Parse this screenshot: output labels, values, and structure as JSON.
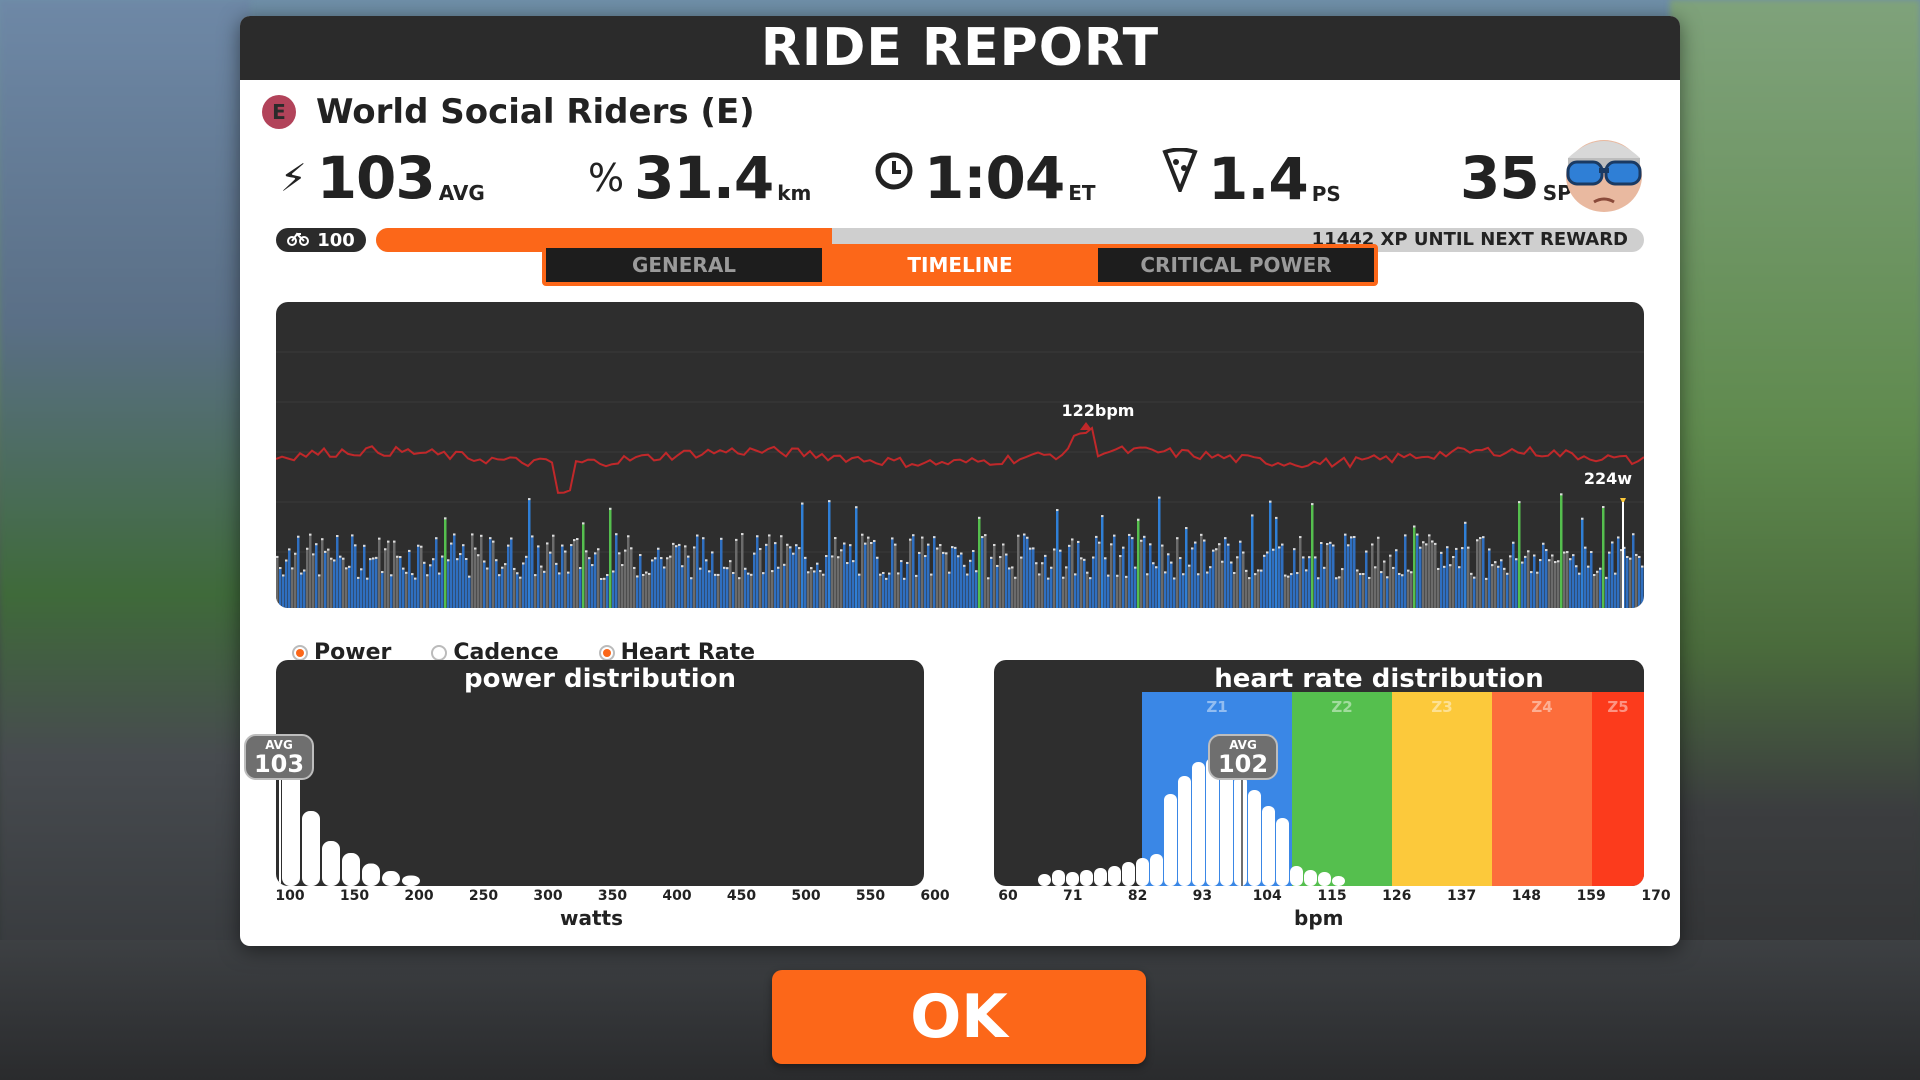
{
  "header": {
    "title": "RIDE REPORT"
  },
  "event": {
    "category": "E",
    "name": "World Social Riders (E)"
  },
  "stats": {
    "power": {
      "value": "103",
      "unit": "AVG"
    },
    "distance": {
      "value": "31.4",
      "unit": "km"
    },
    "time": {
      "value": "1:04",
      "unit": "ET"
    },
    "pizza": {
      "value": "1.4",
      "unit": "PS"
    },
    "sport_points": {
      "value": "35",
      "unit": "SP"
    }
  },
  "xp": {
    "level": "100",
    "progress": 0.36,
    "text": "11442 XP UNTIL NEXT REWARD"
  },
  "tabs": [
    {
      "label": "GENERAL",
      "active": false
    },
    {
      "label": "TIMELINE",
      "active": true
    },
    {
      "label": "CRITICAL POWER",
      "active": false
    }
  ],
  "timeline": {
    "hr_peak_label": "122bpm",
    "power_peak_label": "224w"
  },
  "legend": {
    "power": "Power",
    "cadence": "Cadence",
    "heart_rate": "Heart Rate"
  },
  "power_dist": {
    "title": "power distribution",
    "avg_label": "AVG",
    "avg_value": "103",
    "axis_title": "watts",
    "ticks": [
      "100",
      "150",
      "200",
      "250",
      "300",
      "350",
      "400",
      "450",
      "500",
      "550",
      "600"
    ]
  },
  "hr_dist": {
    "title": "heart rate distribution",
    "avg_label": "AVG",
    "avg_value": "102",
    "axis_title": "bpm",
    "ticks": [
      "60",
      "71",
      "82",
      "93",
      "104",
      "115",
      "126",
      "137",
      "148",
      "159",
      "170"
    ],
    "zones": [
      {
        "label": "Z1",
        "color": "#3a87e6"
      },
      {
        "label": "Z2",
        "color": "#55bf4e"
      },
      {
        "label": "Z3",
        "color": "#fcc93b"
      },
      {
        "label": "Z4",
        "color": "#fc6d3b"
      },
      {
        "label": "Z5",
        "color": "#fc3b1c"
      }
    ]
  },
  "actions": {
    "ok_label": "OK"
  },
  "colors": {
    "accent": "#fc6719",
    "dark": "#2b2b2b"
  }
}
